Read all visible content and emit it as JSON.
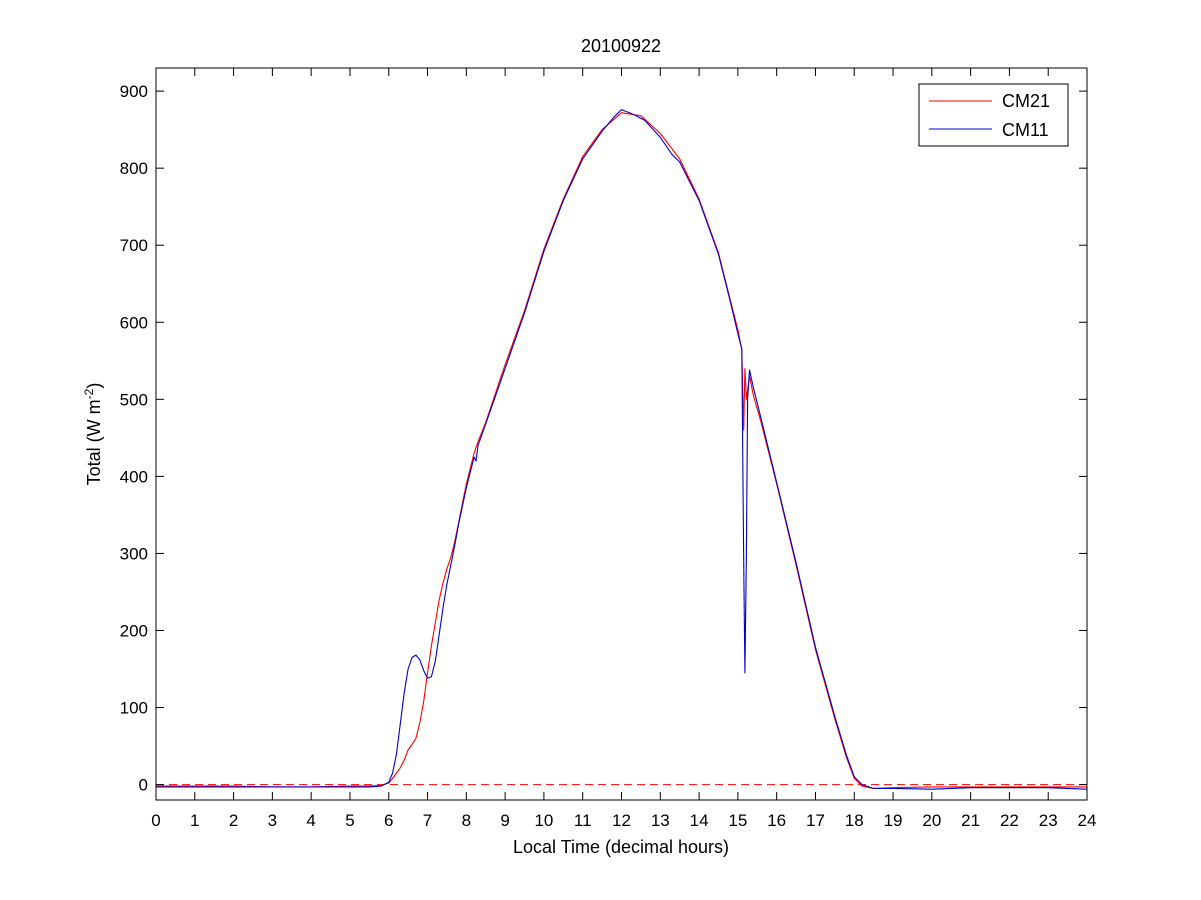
{
  "chart_data": {
    "type": "line",
    "title": "20100922",
    "xlabel": "Local Time (decimal hours)",
    "ylabel": {
      "main": "Total (W m",
      "sup": "-2",
      "close": ")"
    },
    "xlim": [
      0,
      24
    ],
    "ylim": [
      -20,
      930
    ],
    "xticks": [
      0,
      1,
      2,
      3,
      4,
      5,
      6,
      7,
      8,
      9,
      10,
      11,
      12,
      13,
      14,
      15,
      16,
      17,
      18,
      19,
      20,
      21,
      22,
      23,
      24
    ],
    "yticks": [
      0,
      100,
      200,
      300,
      400,
      500,
      600,
      700,
      800,
      900
    ],
    "grid": false,
    "legend_position": "top-right",
    "reference_line": {
      "y": 0,
      "style": "dashed",
      "color": "#ff0000"
    },
    "series": [
      {
        "name": "CM21",
        "color": "#ff0000",
        "points": [
          [
            0,
            -2
          ],
          [
            1,
            -2
          ],
          [
            2,
            -2
          ],
          [
            3,
            -3
          ],
          [
            4,
            -3
          ],
          [
            5,
            -2
          ],
          [
            5.5,
            -2
          ],
          [
            5.8,
            -1
          ],
          [
            6.0,
            2
          ],
          [
            6.1,
            8
          ],
          [
            6.2,
            15
          ],
          [
            6.3,
            22
          ],
          [
            6.4,
            32
          ],
          [
            6.5,
            45
          ],
          [
            6.6,
            52
          ],
          [
            6.7,
            60
          ],
          [
            6.8,
            80
          ],
          [
            6.9,
            108
          ],
          [
            7.0,
            145
          ],
          [
            7.1,
            180
          ],
          [
            7.2,
            210
          ],
          [
            7.3,
            240
          ],
          [
            7.4,
            262
          ],
          [
            7.5,
            280
          ],
          [
            7.6,
            295
          ],
          [
            7.7,
            315
          ],
          [
            7.8,
            340
          ],
          [
            8.0,
            390
          ],
          [
            8.2,
            430
          ],
          [
            8.3,
            445
          ],
          [
            8.5,
            470
          ],
          [
            9.0,
            545
          ],
          [
            9.5,
            615
          ],
          [
            10.0,
            695
          ],
          [
            10.5,
            760
          ],
          [
            11.0,
            815
          ],
          [
            11.5,
            850
          ],
          [
            12.0,
            872
          ],
          [
            12.5,
            868
          ],
          [
            13.0,
            845
          ],
          [
            13.5,
            812
          ],
          [
            14.0,
            760
          ],
          [
            14.5,
            690
          ],
          [
            14.8,
            630
          ],
          [
            15.0,
            590
          ],
          [
            15.1,
            565
          ],
          [
            15.15,
            460
          ],
          [
            15.18,
            540
          ],
          [
            15.22,
            500
          ],
          [
            15.3,
            530
          ],
          [
            15.4,
            505
          ],
          [
            15.6,
            470
          ],
          [
            16.0,
            390
          ],
          [
            16.5,
            285
          ],
          [
            17.0,
            175
          ],
          [
            17.5,
            85
          ],
          [
            17.8,
            35
          ],
          [
            18.0,
            8
          ],
          [
            18.2,
            -2
          ],
          [
            18.5,
            -5
          ],
          [
            19,
            -4
          ],
          [
            20,
            -3
          ],
          [
            21,
            -3
          ],
          [
            22,
            -3
          ],
          [
            23,
            -3
          ],
          [
            24,
            -3
          ]
        ]
      },
      {
        "name": "CM11",
        "color": "#0000cc",
        "points": [
          [
            0,
            -3
          ],
          [
            1,
            -3
          ],
          [
            2,
            -3
          ],
          [
            3,
            -3
          ],
          [
            4,
            -3
          ],
          [
            5,
            -3
          ],
          [
            5.5,
            -3
          ],
          [
            5.8,
            -2
          ],
          [
            6.0,
            3
          ],
          [
            6.1,
            15
          ],
          [
            6.2,
            40
          ],
          [
            6.3,
            80
          ],
          [
            6.4,
            120
          ],
          [
            6.5,
            150
          ],
          [
            6.6,
            165
          ],
          [
            6.7,
            168
          ],
          [
            6.8,
            162
          ],
          [
            6.9,
            148
          ],
          [
            7.0,
            138
          ],
          [
            7.1,
            140
          ],
          [
            7.2,
            160
          ],
          [
            7.3,
            195
          ],
          [
            7.4,
            230
          ],
          [
            7.5,
            260
          ],
          [
            7.6,
            285
          ],
          [
            7.7,
            310
          ],
          [
            7.8,
            338
          ],
          [
            8.0,
            385
          ],
          [
            8.2,
            425
          ],
          [
            8.25,
            420
          ],
          [
            8.3,
            440
          ],
          [
            8.5,
            468
          ],
          [
            9.0,
            540
          ],
          [
            9.5,
            612
          ],
          [
            10.0,
            692
          ],
          [
            10.5,
            758
          ],
          [
            11.0,
            812
          ],
          [
            11.5,
            848
          ],
          [
            11.8,
            866
          ],
          [
            12.0,
            876
          ],
          [
            12.3,
            870
          ],
          [
            12.6,
            862
          ],
          [
            13.0,
            840
          ],
          [
            13.3,
            818
          ],
          [
            13.5,
            808
          ],
          [
            14.0,
            758
          ],
          [
            14.5,
            688
          ],
          [
            14.8,
            628
          ],
          [
            15.0,
            585
          ],
          [
            15.1,
            565
          ],
          [
            15.15,
            290
          ],
          [
            15.18,
            145
          ],
          [
            15.22,
            300
          ],
          [
            15.25,
            500
          ],
          [
            15.3,
            538
          ],
          [
            15.4,
            515
          ],
          [
            15.6,
            475
          ],
          [
            16.0,
            392
          ],
          [
            16.5,
            288
          ],
          [
            17.0,
            178
          ],
          [
            17.5,
            88
          ],
          [
            17.8,
            38
          ],
          [
            18.0,
            10
          ],
          [
            18.2,
            0
          ],
          [
            18.5,
            -5
          ],
          [
            19,
            -5
          ],
          [
            20,
            -6
          ],
          [
            21,
            -4
          ],
          [
            22,
            -4
          ],
          [
            23,
            -4
          ],
          [
            24,
            -6
          ]
        ]
      }
    ]
  }
}
